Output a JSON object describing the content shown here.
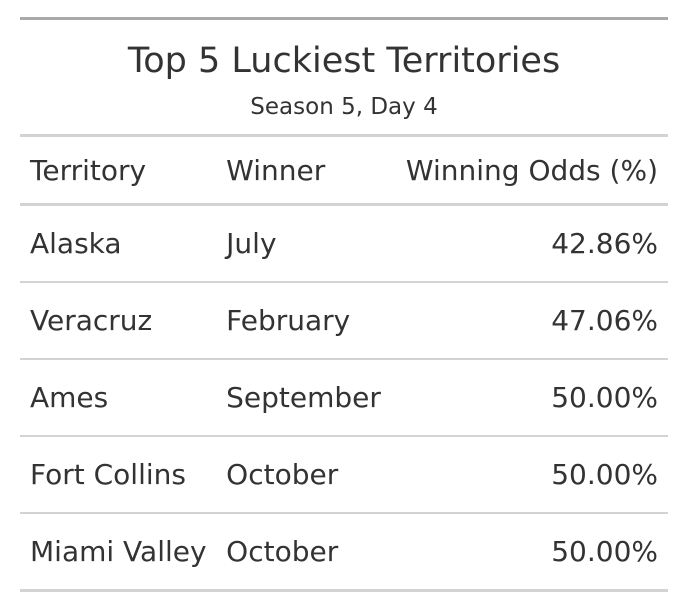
{
  "table": {
    "title": "Top 5 Luckiest Territories",
    "subtitle": "Season 5, Day 4",
    "columns": [
      "Territory",
      "Winner",
      "Winning Odds (%)"
    ],
    "rows": [
      {
        "territory": "Alaska",
        "winner": "July",
        "odds": "42.86%"
      },
      {
        "territory": "Veracruz",
        "winner": "February",
        "odds": "47.06%"
      },
      {
        "territory": "Ames",
        "winner": "September",
        "odds": "50.00%"
      },
      {
        "territory": "Fort Collins",
        "winner": "October",
        "odds": "50.00%"
      },
      {
        "territory": "Miami Valley",
        "winner": "October",
        "odds": "50.00%"
      }
    ]
  }
}
